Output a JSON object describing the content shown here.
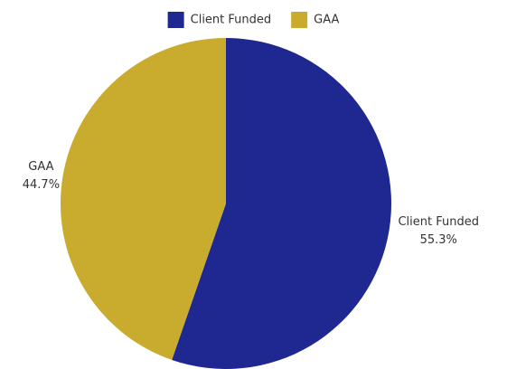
{
  "chart_data": {
    "type": "pie",
    "categories": [
      "Client Funded",
      "GAA"
    ],
    "values": [
      55.3,
      44.7
    ],
    "value_labels": [
      "55.3%",
      "44.7%"
    ],
    "colors": [
      "#1e2890",
      "#c9ab2e"
    ],
    "legend": "top"
  }
}
